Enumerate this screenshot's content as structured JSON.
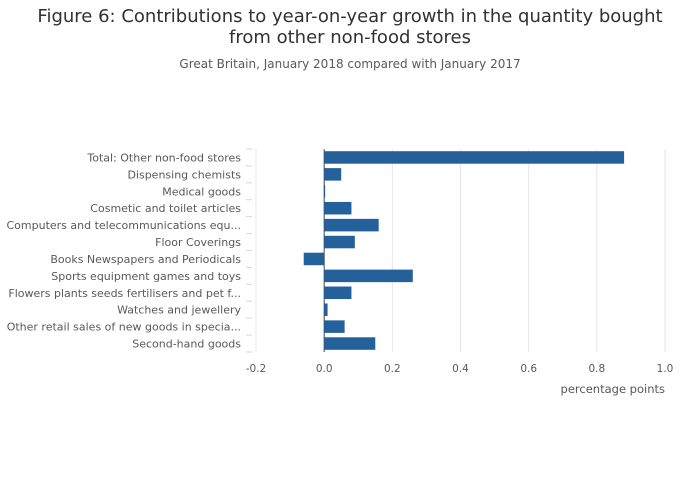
{
  "chart_data": {
    "type": "bar",
    "orientation": "horizontal",
    "title": "Figure 6: Contributions to year-on-year growth in the quantity bought from other non-food stores",
    "subtitle": "Great Britain, January 2018 compared with January 2017",
    "xlabel": "percentage points",
    "ylabel": "",
    "xlim": [
      -0.2,
      1.0
    ],
    "xticks": [
      -0.2,
      0.0,
      0.2,
      0.4,
      0.6,
      0.8,
      1.0
    ],
    "xtick_labels": [
      "-0.2",
      "0.0",
      "0.2",
      "0.4",
      "0.6",
      "0.8",
      "1.0"
    ],
    "grid": true,
    "legend": "none",
    "bar_color": "#24609a",
    "categories": [
      "Total: Other non-food stores",
      "Dispensing chemists",
      "Medical goods",
      "Cosmetic and toilet articles",
      "Computers and telecommunications equ...",
      "Floor Coverings",
      "Books Newspapers and Periodicals",
      "Sports equipment games and toys",
      "Flowers plants seeds fertilisers and pet f...",
      "Watches and jewellery",
      "Other retail sales of new goods in specia...",
      "Second-hand goods"
    ],
    "values": [
      0.88,
      0.05,
      0.0,
      0.08,
      0.16,
      0.09,
      -0.06,
      0.26,
      0.08,
      0.01,
      0.06,
      0.15
    ]
  }
}
